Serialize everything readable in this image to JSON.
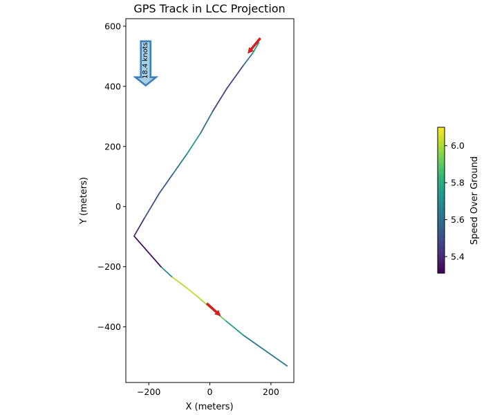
{
  "chart_data": {
    "type": "line",
    "title": "GPS Track in LCC Projection",
    "xlabel": "X (meters)",
    "ylabel": "Y (meters)",
    "xlim": [
      -275,
      275
    ],
    "ylim": [
      -585,
      625
    ],
    "xticks": [
      -200,
      0,
      200
    ],
    "xtick_labels": [
      "−200",
      "0",
      "200"
    ],
    "yticks": [
      -400,
      -200,
      0,
      200,
      400,
      600
    ],
    "ytick_labels": [
      "−400",
      "−200",
      "0",
      "200",
      "400",
      "600"
    ],
    "grid": false,
    "colormap": "viridis",
    "colorbar": {
      "label": "Speed Over Ground",
      "range": [
        5.31,
        6.1
      ],
      "ticks": [
        5.4,
        5.6,
        5.8,
        6.0
      ],
      "tick_labels": [
        "5.4",
        "5.6",
        "5.8",
        "6.0"
      ]
    },
    "track": [
      {
        "x": 253,
        "y": -530,
        "speed": 5.65
      },
      {
        "x": 110,
        "y": -428,
        "speed": 5.62
      },
      {
        "x": 50,
        "y": -378,
        "speed": 5.9
      },
      {
        "x": 0,
        "y": -335,
        "speed": 5.95
      },
      {
        "x": -40,
        "y": -300,
        "speed": 6.05
      },
      {
        "x": -80,
        "y": -267,
        "speed": 6.0
      },
      {
        "x": -125,
        "y": -233,
        "speed": 6.02
      },
      {
        "x": -160,
        "y": -200,
        "speed": 5.35
      },
      {
        "x": -248,
        "y": -98,
        "speed": 5.32
      },
      {
        "x": -215,
        "y": -40,
        "speed": 5.5
      },
      {
        "x": -165,
        "y": 45,
        "speed": 5.5
      },
      {
        "x": -120,
        "y": 110,
        "speed": 5.55
      },
      {
        "x": -75,
        "y": 175,
        "speed": 5.7
      },
      {
        "x": -30,
        "y": 245,
        "speed": 5.75
      },
      {
        "x": 10,
        "y": 318,
        "speed": 5.45
      },
      {
        "x": 55,
        "y": 392,
        "speed": 5.45
      },
      {
        "x": 110,
        "y": 470,
        "speed": 5.5
      },
      {
        "x": 140,
        "y": 510,
        "speed": 5.7
      },
      {
        "x": 160,
        "y": 545,
        "speed": 5.78
      }
    ],
    "direction_arrows": [
      {
        "x": 165,
        "y": 560,
        "dx": -18,
        "dy": -22,
        "color": "#e41a1c"
      },
      {
        "x": -10,
        "y": -322,
        "dx": 20,
        "dy": -18,
        "color": "#e41a1c"
      }
    ],
    "wind_arrow": {
      "text": "18.4 knots",
      "x": -210,
      "y": 550,
      "direction": "south",
      "fill": "#a6cfe6",
      "stroke": "#3a7fb8"
    }
  }
}
